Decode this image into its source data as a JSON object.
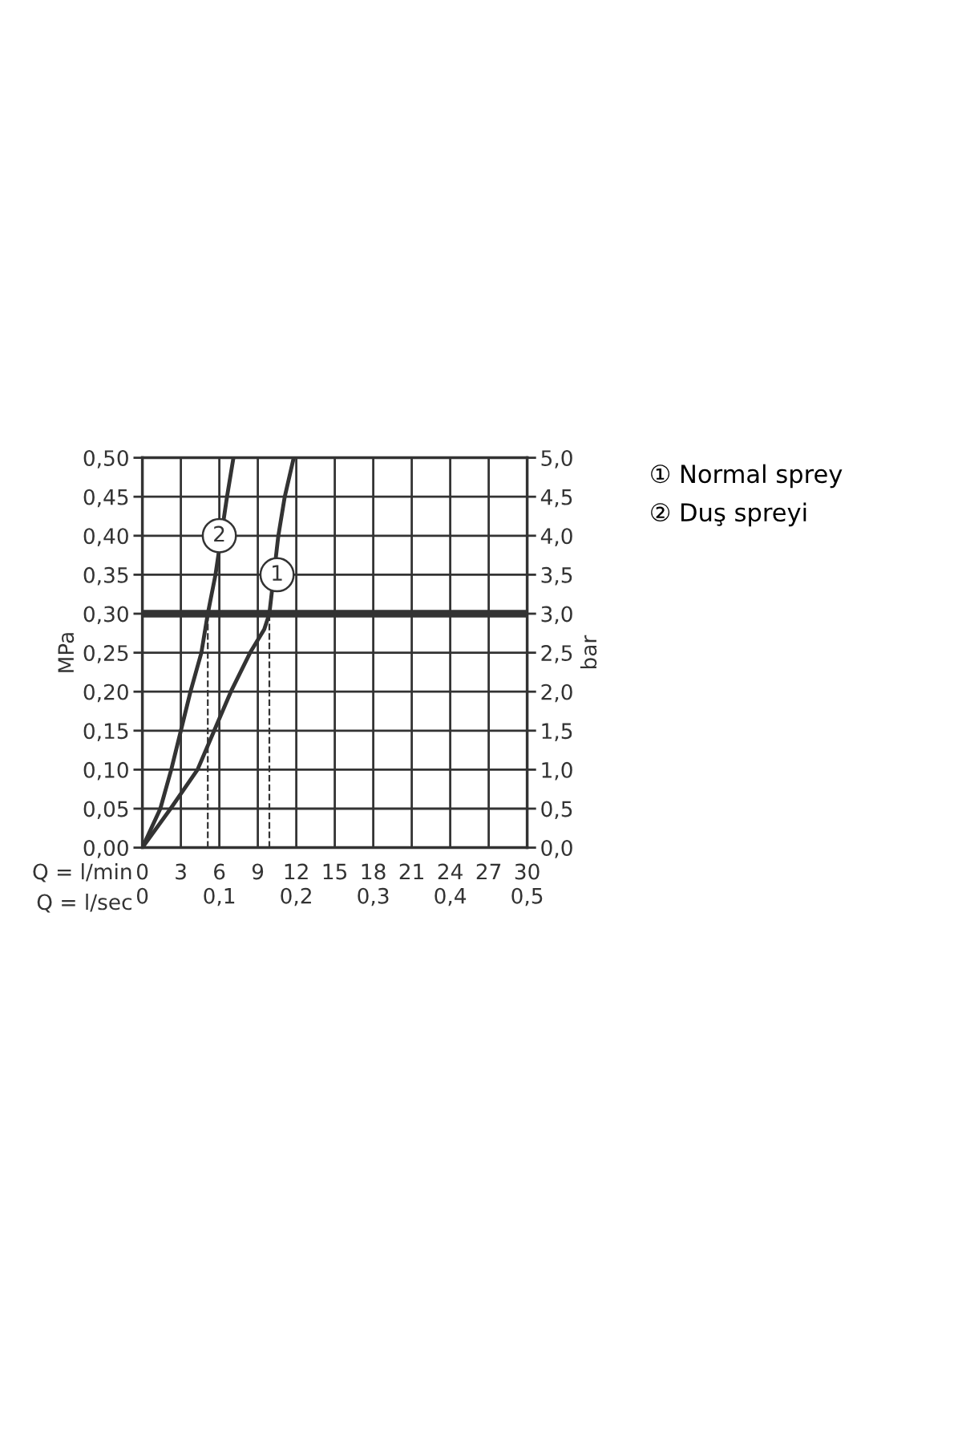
{
  "chart_data": {
    "type": "line",
    "xlabel": "Q = l/min",
    "x2label": "Q = l/sec",
    "ylabel": "MPa",
    "y2label": "bar",
    "xlim": [
      0,
      30
    ],
    "xticks": [
      0,
      3,
      6,
      9,
      12,
      15,
      18,
      21,
      24,
      27,
      30
    ],
    "x2lim": [
      0,
      0.5
    ],
    "x2ticks": [
      0,
      {
        "value": 0.1,
        "label": "0,1"
      },
      {
        "value": 0.2,
        "label": "0,2"
      },
      {
        "value": 0.3,
        "label": "0,3"
      },
      {
        "value": 0.4,
        "label": "0,4"
      },
      {
        "value": 0.5,
        "label": "0,5"
      }
    ],
    "ylim": [
      0,
      0.5
    ],
    "yticks": [
      {
        "value": 0,
        "label": "0,00"
      },
      {
        "value": 0.05,
        "label": "0,05"
      },
      {
        "value": 0.1,
        "label": "0,10"
      },
      {
        "value": 0.15,
        "label": "0,15"
      },
      {
        "value": 0.2,
        "label": "0,20"
      },
      {
        "value": 0.25,
        "label": "0,25"
      },
      {
        "value": 0.3,
        "label": "0,30"
      },
      {
        "value": 0.35,
        "label": "0,35"
      },
      {
        "value": 0.4,
        "label": "0,40"
      },
      {
        "value": 0.45,
        "label": "0,45"
      },
      {
        "value": 0.5,
        "label": "0,50"
      }
    ],
    "y2lim": [
      0,
      5
    ],
    "y2ticks": [
      {
        "value": 0,
        "label": "0,0"
      },
      {
        "value": 0.5,
        "label": "0,5"
      },
      {
        "value": 1,
        "label": "1,0"
      },
      {
        "value": 1.5,
        "label": "1,5"
      },
      {
        "value": 2,
        "label": "2,0"
      },
      {
        "value": 2.5,
        "label": "2,5"
      },
      {
        "value": 3,
        "label": "3,0"
      },
      {
        "value": 3.5,
        "label": "3,5"
      },
      {
        "value": 4,
        "label": "4,0"
      },
      {
        "value": 4.5,
        "label": "4,5"
      },
      {
        "value": 5,
        "label": "5,0"
      }
    ],
    "grid": true,
    "legend": "top right",
    "marker": "none",
    "line_style": "solid",
    "series": [
      {
        "name": "① Normal sprey",
        "color": "#333333",
        "x": [
          0,
          2.2,
          4.3,
          5.6,
          6.9,
          8.4,
          9.5,
          9.9,
          10.6,
          11.1,
          11.8
        ],
        "values": [
          0,
          0.05,
          0.1,
          0.15,
          0.2,
          0.25,
          0.28,
          0.3,
          0.4,
          0.45,
          0.5
        ]
      },
      {
        "name": "② Duş spreyi",
        "color": "#333333",
        "x": [
          0,
          1.4,
          2.25,
          3.0,
          3.75,
          4.6,
          5.1,
          5.7,
          6.6,
          7.1
        ],
        "values": [
          0,
          0.05,
          0.1,
          0.15,
          0.2,
          0.25,
          0.3,
          0.35,
          0.45,
          0.5
        ]
      }
    ],
    "ref_lines": [
      {
        "axis": "y",
        "value": 0.3,
        "color": "#333333",
        "line_style": "solid"
      },
      {
        "axis": "x",
        "value": 5.1,
        "color": "#333333",
        "line_style": "dashed"
      },
      {
        "axis": "x",
        "value": 9.9,
        "color": "#333333",
        "line_style": "dashed"
      }
    ],
    "annotations": [
      {
        "text": "1",
        "x": 10.5,
        "y": 0.35
      },
      {
        "text": "2",
        "x": 6.0,
        "y": 0.4
      }
    ]
  }
}
